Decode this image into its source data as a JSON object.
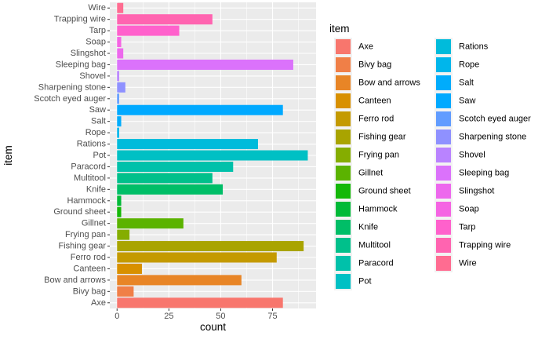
{
  "chart_data": {
    "type": "bar",
    "orientation": "horizontal",
    "xlabel": "count",
    "ylabel": "item",
    "xlim": [
      -3.5,
      96
    ],
    "xticks": [
      0,
      25,
      50,
      75
    ],
    "grid": true,
    "legend_title": "item",
    "legend_position": "right",
    "categories": [
      "Axe",
      "Bivy bag",
      "Bow and arrows",
      "Canteen",
      "Ferro rod",
      "Fishing gear",
      "Frying pan",
      "Gillnet",
      "Ground sheet",
      "Hammock",
      "Knife",
      "Multitool",
      "Paracord",
      "Pot",
      "Rations",
      "Rope",
      "Salt",
      "Saw",
      "Scotch eyed auger",
      "Sharpening stone",
      "Shovel",
      "Sleeping bag",
      "Slingshot",
      "Soap",
      "Tarp",
      "Trapping wire",
      "Wire"
    ],
    "values": [
      80,
      8,
      60,
      12,
      77,
      90,
      6,
      32,
      2,
      2,
      51,
      46,
      56,
      92,
      68,
      1,
      2,
      80,
      1,
      4,
      1,
      85,
      3,
      2,
      30,
      46,
      3
    ],
    "colors": [
      "#F8766D",
      "#F07F47",
      "#E88526",
      "#D89000",
      "#C49A00",
      "#A9A400",
      "#85AD00",
      "#5BB300",
      "#15B808",
      "#00BA38",
      "#00BE67",
      "#00C08B",
      "#00C1AA",
      "#00C0C4",
      "#00BBDB",
      "#00B6EB",
      "#00ACFC",
      "#00A9FF",
      "#619CFF",
      "#8F91FF",
      "#B983FF",
      "#DB72FB",
      "#ED68ED",
      "#F564E3",
      "#FF61CC",
      "#FF64B0",
      "#FF6C91"
    ]
  }
}
